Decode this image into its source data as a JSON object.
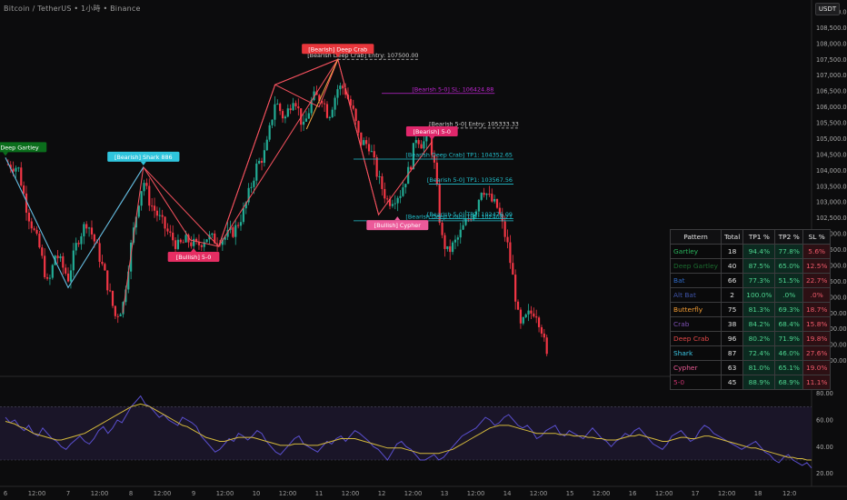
{
  "header": {
    "title": "Bitcoin / TetherUS • 1小時 • Binance",
    "currency": "USDT"
  },
  "chart_data": [
    {
      "type": "candlestick",
      "ylim": [
        97500,
        109200
      ],
      "y_ticks": [
        "109,000.00",
        "108,500.00",
        "108,000.00",
        "107,500.00",
        "107,000.00",
        "106,500.00",
        "106,000.00",
        "105,500.00",
        "105,000.00",
        "104,500.00",
        "104,000.00",
        "103,500.00",
        "103,000.00",
        "102,500.00",
        "102,000.00",
        "101,500.00",
        "101,000.00",
        "100,500.00",
        "100,000.00",
        "99,500.00",
        "99,000.00",
        "98,500.00",
        "98,000.00"
      ],
      "x_ticks": [
        "6",
        "12:00",
        "7",
        "12:00",
        "8",
        "12:00",
        "9",
        "12:00",
        "10",
        "12:00",
        "11",
        "12:00",
        "12",
        "12:00",
        "13",
        "12:00",
        "14",
        "12:00",
        "15",
        "12:00",
        "16",
        "12:00",
        "17",
        "12:00",
        "18",
        "12:0"
      ],
      "colors": {
        "up": "#22ab94",
        "down": "#f23645",
        "pattern_bear": "#f7525f",
        "pattern_bull": "#4cc3e8",
        "cyan": "#22c2cf",
        "magenta": "#c026d3"
      },
      "close_path": [
        [
          6.0,
          104200
        ],
        [
          6.2,
          104100
        ],
        [
          6.35,
          102700
        ],
        [
          6.55,
          101500
        ],
        [
          6.68,
          100300
        ],
        [
          6.8,
          101400
        ],
        [
          7.0,
          100600
        ],
        [
          7.15,
          101800
        ],
        [
          7.3,
          102400
        ],
        [
          7.45,
          101600
        ],
        [
          7.6,
          100600
        ],
        [
          7.75,
          99400
        ],
        [
          7.87,
          99700
        ],
        [
          8.0,
          101600
        ],
        [
          8.12,
          103000
        ],
        [
          8.2,
          103700
        ],
        [
          8.3,
          103000
        ],
        [
          8.45,
          102500
        ],
        [
          8.6,
          102000
        ],
        [
          8.75,
          101600
        ],
        [
          8.9,
          101800
        ],
        [
          9.05,
          101600
        ],
        [
          9.2,
          101900
        ],
        [
          9.35,
          101800
        ],
        [
          9.5,
          101900
        ],
        [
          9.65,
          102100
        ],
        [
          9.8,
          102700
        ],
        [
          10.0,
          104100
        ],
        [
          10.15,
          104600
        ],
        [
          10.3,
          106200
        ],
        [
          10.45,
          105600
        ],
        [
          10.6,
          106400
        ],
        [
          10.75,
          105300
        ],
        [
          10.9,
          106300
        ],
        [
          11.05,
          106300
        ],
        [
          11.15,
          105700
        ],
        [
          11.3,
          106600
        ],
        [
          11.4,
          106600
        ],
        [
          11.55,
          105800
        ],
        [
          11.65,
          104900
        ],
        [
          11.8,
          104800
        ],
        [
          11.95,
          103700
        ],
        [
          12.1,
          103000
        ],
        [
          12.3,
          103300
        ],
        [
          12.45,
          104100
        ],
        [
          12.55,
          105100
        ],
        [
          12.65,
          104800
        ],
        [
          12.75,
          105200
        ],
        [
          12.85,
          104000
        ],
        [
          12.95,
          101900
        ],
        [
          13.05,
          101400
        ],
        [
          13.2,
          101800
        ],
        [
          13.35,
          102400
        ],
        [
          13.5,
          102800
        ],
        [
          13.6,
          103500
        ],
        [
          13.72,
          103100
        ],
        [
          13.85,
          102800
        ],
        [
          14.0,
          101700
        ],
        [
          14.1,
          100500
        ],
        [
          14.2,
          99000
        ],
        [
          14.32,
          99400
        ],
        [
          14.45,
          99600
        ],
        [
          14.55,
          99000
        ],
        [
          14.65,
          97900
        ]
      ],
      "pattern_lines": [
        {
          "color": "#f7525f",
          "points": [
            [
              6.0,
              104400
            ],
            [
              7.0,
              100300
            ],
            [
              8.2,
              104100
            ],
            [
              7.87,
              99500
            ],
            [
              8.2,
              104100
            ],
            [
              9.4,
              101600
            ],
            [
              10.3,
              106700
            ],
            [
              11.3,
              107500
            ],
            [
              11.95,
              102600
            ],
            [
              12.8,
              104900
            ]
          ]
        },
        {
          "color": "#f7525f",
          "points": [
            [
              9.4,
              101600
            ],
            [
              11.3,
              107500
            ],
            [
              10.3,
              106700
            ],
            [
              11.0,
              106000
            ],
            [
              11.3,
              107500
            ],
            [
              11.95,
              102600
            ]
          ]
        },
        {
          "color": "#f7525f",
          "points": [
            [
              8.2,
              104100
            ],
            [
              8.95,
              101800
            ],
            [
              9.4,
              101600
            ],
            [
              10.3,
              106700
            ]
          ]
        },
        {
          "color": "#4cc3e8",
          "points": [
            [
              6.0,
              104400
            ],
            [
              7.0,
              100300
            ],
            [
              8.2,
              104100
            ]
          ]
        },
        {
          "color": "#f5a742",
          "points": [
            [
              10.8,
              105300
            ],
            [
              11.3,
              107500
            ]
          ]
        }
      ],
      "levels": [
        {
          "label": "[Bearish Deep Crab] Entry: 107500.00",
          "y": 107500,
          "x_start": 11.3,
          "x_end": 12.6,
          "style": "dash",
          "color": "#d0d0d0"
        },
        {
          "label": "[Bearish 5-0] SL: 106424.88",
          "y": 106424.88,
          "x_start": 12.0,
          "x_end": 13.8,
          "style": "solid",
          "color": "#c026d3"
        },
        {
          "label": "[Bearish 5-0] Entry: 105333.33",
          "y": 105333.33,
          "x_start": 12.75,
          "x_end": 14.2,
          "style": "dash",
          "color": "#d0d0d0"
        },
        {
          "label": "[Bearish Deep Crab] TP1: 104352.65",
          "y": 104352.65,
          "x_start": 11.55,
          "x_end": 14.1,
          "style": "solid",
          "color": "#22c2cf"
        },
        {
          "label": "[Bearish 5-0] TP1: 103567.56",
          "y": 103567.56,
          "x_start": 12.75,
          "x_end": 14.1,
          "style": "solid",
          "color": "#22c2cf"
        },
        {
          "label": "[Bearish 5-0] TP2: 102476.09",
          "y": 102476.09,
          "x_start": 12.75,
          "x_end": 14.1,
          "style": "solid",
          "color": "#22c2cf"
        },
        {
          "label": "[Bearish Deep Crab] TP2: 102408.21",
          "y": 102408.21,
          "x_start": 11.55,
          "x_end": 14.1,
          "style": "solid",
          "color": "#22c2cf"
        }
      ],
      "pattern_tags": [
        {
          "label": "[Bearish] Deep Gartley",
          "x": 6.0,
          "y": 104400,
          "color": "#0b6e1c",
          "position": "above"
        },
        {
          "label": "[Bearish] Shark 886",
          "x": 8.2,
          "y": 104100,
          "color": "#2fc5dd",
          "position": "above"
        },
        {
          "label": "[Bullish] 5-0",
          "x": 9.0,
          "y": 101600,
          "color": "#e62e63",
          "position": "below"
        },
        {
          "label": "[Bearish] Deep Crab",
          "x": 11.3,
          "y": 107500,
          "color": "#e8363b",
          "position": "above"
        },
        {
          "label": "[Bearish] 5-0",
          "x": 12.8,
          "y": 104900,
          "color": "#e0276b",
          "position": "above"
        },
        {
          "label": "[Bullish] Cypher",
          "x": 12.25,
          "y": 102600,
          "color": "#ec5a9a",
          "position": "below"
        }
      ]
    },
    {
      "type": "line",
      "ylim": [
        15,
        90
      ],
      "y_ticks": [
        "80.00",
        "60.00",
        "40.00",
        "20.00"
      ],
      "series": [
        {
          "values": [
            62,
            58,
            60,
            55,
            52,
            56,
            50,
            48,
            54,
            50,
            46,
            44,
            40,
            38,
            42,
            45,
            48,
            44,
            42,
            46,
            52,
            55,
            50,
            54,
            60,
            58,
            64,
            70,
            74,
            78,
            72,
            70,
            66,
            62,
            64,
            60,
            58,
            56,
            62,
            60,
            58,
            55,
            48,
            44,
            40,
            36,
            38,
            42,
            46,
            44,
            50,
            48,
            45,
            48,
            52,
            50,
            44,
            40,
            36,
            34,
            38,
            42,
            46,
            48,
            42,
            40,
            38,
            36,
            40,
            44,
            42,
            46,
            48,
            44,
            48,
            52,
            50,
            47,
            44,
            40,
            38,
            34,
            30,
            36,
            42,
            44,
            40,
            38,
            34,
            30,
            30,
            32,
            34,
            30,
            32,
            36,
            40,
            44,
            48,
            50,
            52,
            54,
            58,
            62,
            60,
            56,
            58,
            62,
            64,
            60,
            56,
            54,
            56,
            52,
            46,
            48,
            52,
            54,
            56,
            50,
            48,
            52,
            50,
            48,
            46,
            50,
            54,
            50,
            46,
            44,
            40,
            44,
            46,
            50,
            48,
            52,
            54,
            50,
            46,
            42,
            40,
            38,
            42,
            48,
            50,
            52,
            48,
            44,
            46,
            52,
            56,
            54,
            50,
            48,
            46,
            44,
            42,
            40,
            38,
            40,
            42,
            44,
            40,
            36,
            34,
            30,
            28,
            32,
            34,
            30,
            28,
            26,
            28,
            24
          ],
          "color": "#5a4fcf"
        },
        {
          "values": [
            59,
            58,
            57,
            55,
            54,
            52,
            50,
            49,
            48,
            47,
            46,
            45,
            45,
            46,
            47,
            48,
            49,
            50,
            52,
            54,
            56,
            58,
            60,
            62,
            64,
            66,
            68,
            70,
            71,
            72,
            71,
            70,
            68,
            66,
            64,
            62,
            60,
            58,
            56,
            55,
            53,
            51,
            49,
            47,
            46,
            45,
            44,
            44,
            45,
            46,
            47,
            47,
            47,
            47,
            46,
            45,
            44,
            43,
            42,
            41,
            41,
            41,
            42,
            42,
            42,
            41,
            41,
            41,
            42,
            43,
            44,
            45,
            46,
            46,
            46,
            46,
            45,
            44,
            43,
            42,
            41,
            40,
            39,
            39,
            39,
            39,
            38,
            37,
            36,
            35,
            35,
            35,
            35,
            35,
            36,
            37,
            38,
            40,
            42,
            44,
            46,
            48,
            50,
            52,
            54,
            55,
            56,
            56,
            56,
            55,
            54,
            53,
            52,
            51,
            50,
            50,
            50,
            50,
            50,
            49,
            49,
            49,
            48,
            48,
            48,
            47,
            47,
            46,
            46,
            45,
            45,
            45,
            46,
            47,
            48,
            48,
            49,
            48,
            47,
            46,
            45,
            44,
            44,
            45,
            46,
            47,
            47,
            46,
            46,
            47,
            48,
            48,
            47,
            46,
            45,
            44,
            43,
            42,
            41,
            40,
            39,
            39,
            38,
            37,
            36,
            35,
            34,
            33,
            32,
            32,
            31,
            31,
            30,
            30
          ],
          "color": "#d4b93c"
        }
      ],
      "bands": [
        70,
        30
      ]
    }
  ],
  "stats_table": {
    "headers": [
      "Pattern",
      "Total",
      "TP1 %",
      "TP2 %",
      "SL %"
    ],
    "rows": [
      {
        "pattern": "Gartley",
        "color": "#29b35b",
        "total": "18",
        "tp1": "94.4%",
        "tp2": "77.8%",
        "sl": "5.6%"
      },
      {
        "pattern": "Deep Gartley",
        "color": "#1b6b2f",
        "total": "40",
        "tp1": "87.5%",
        "tp2": "65.0%",
        "sl": "12.5%"
      },
      {
        "pattern": "Bat",
        "color": "#2d68c4",
        "total": "66",
        "tp1": "77.3%",
        "tp2": "51.5%",
        "sl": "22.7%"
      },
      {
        "pattern": "Alt Bat",
        "color": "#3e53a8",
        "total": "2",
        "tp1": "100.0%",
        "tp2": ".0%",
        "sl": ".0%"
      },
      {
        "pattern": "Butterfly",
        "color": "#f39c33",
        "total": "75",
        "tp1": "81.3%",
        "tp2": "69.3%",
        "sl": "18.7%"
      },
      {
        "pattern": "Crab",
        "color": "#7b4fb0",
        "total": "38",
        "tp1": "84.2%",
        "tp2": "68.4%",
        "sl": "15.8%"
      },
      {
        "pattern": "Deep Crab",
        "color": "#e24848",
        "total": "96",
        "tp1": "80.2%",
        "tp2": "71.9%",
        "sl": "19.8%"
      },
      {
        "pattern": "Shark",
        "color": "#3cc8e6",
        "total": "87",
        "tp1": "72.4%",
        "tp2": "46.0%",
        "sl": "27.6%"
      },
      {
        "pattern": "Cypher",
        "color": "#ea5a94",
        "total": "63",
        "tp1": "81.0%",
        "tp2": "65.1%",
        "sl": "19.0%"
      },
      {
        "pattern": "5-0",
        "color": "#c8326f",
        "total": "45",
        "tp1": "88.9%",
        "tp2": "68.9%",
        "sl": "11.1%"
      }
    ]
  }
}
